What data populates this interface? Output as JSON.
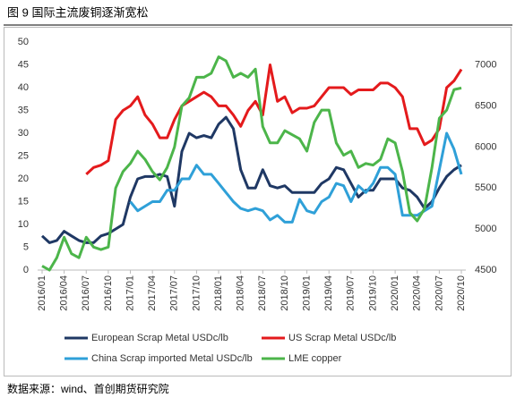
{
  "chart_data": {
    "type": "line",
    "title": "图 9 国际主流废铜逐渐宽松",
    "source": "数据来源：wind、首创期货研究院",
    "categories": [
      "2016/01",
      null,
      null,
      "2016/04",
      null,
      null,
      "2016/07",
      null,
      null,
      "2016/10",
      null,
      null,
      "2017/01",
      null,
      null,
      "2017/04",
      null,
      null,
      "2017/07",
      null,
      null,
      "2017/10",
      null,
      null,
      "2018/01",
      null,
      null,
      "2018/04",
      null,
      null,
      "2018/07",
      null,
      null,
      "2018/10",
      null,
      null,
      "2019/01",
      null,
      null,
      "2019/04",
      null,
      null,
      "2019/07",
      null,
      null,
      "2019/10",
      null,
      null,
      "2020/01",
      null,
      null,
      "2020/04",
      null,
      null,
      "2020/07",
      null,
      null,
      "2020/10"
    ],
    "ylim": [
      0,
      50
    ],
    "yticks": [
      0,
      5,
      10,
      15,
      20,
      25,
      30,
      35,
      40,
      45,
      50
    ],
    "y2lim": [
      4500,
      7280
    ],
    "y2ticks": [
      4500,
      5000,
      5500,
      6000,
      6500,
      7000
    ],
    "series": [
      {
        "name": "European Scrap Metal  USDc/lb",
        "color": "#1f3864",
        "values": [
          7.5,
          6,
          6.5,
          8.5,
          7.5,
          6.5,
          6,
          6,
          7.5,
          8,
          9,
          10,
          16,
          20,
          20.5,
          20.5,
          21,
          20.5,
          14,
          26,
          30,
          29,
          29.5,
          29,
          32,
          33.5,
          31,
          22,
          18,
          18,
          22,
          18.5,
          18,
          18.5,
          17,
          17,
          17,
          17,
          19,
          20,
          22.5,
          22,
          19,
          16,
          17.5,
          17.5,
          20,
          20,
          20,
          18,
          17.5,
          16,
          13.5,
          15,
          18,
          20.5,
          22,
          23
        ]
      },
      {
        "name": "US Scrap Metal  USDc/lb",
        "color": "#e41a1c",
        "values": [
          null,
          null,
          null,
          null,
          null,
          null,
          21,
          22.5,
          23,
          24,
          33,
          35,
          36,
          38,
          34,
          32,
          29,
          29,
          33,
          36,
          37,
          38,
          39,
          38,
          36,
          36,
          34,
          31.5,
          35,
          37,
          34,
          45,
          37,
          38,
          34.5,
          35.5,
          35.5,
          36,
          38,
          40,
          40,
          40,
          38.5,
          39.5,
          39.5,
          39.5,
          41,
          41,
          40,
          38,
          31,
          31,
          27.5,
          28.5,
          31,
          40,
          41.5,
          44
        ]
      },
      {
        "name": "China Scrap imported Metal  USDc/lb",
        "color": "#2fa0d8",
        "values": [
          null,
          null,
          null,
          null,
          null,
          null,
          null,
          null,
          null,
          null,
          null,
          null,
          15,
          13,
          14,
          15,
          15,
          17.5,
          17.5,
          20,
          20,
          23,
          21,
          21,
          19,
          17,
          15,
          13.5,
          13,
          13.5,
          13,
          11,
          12,
          10.5,
          10.5,
          15.5,
          13,
          12.5,
          15,
          16,
          19,
          18.5,
          15,
          18.5,
          17,
          19,
          22.5,
          22.5,
          21,
          12,
          12,
          12,
          13,
          14,
          22,
          30,
          26.5,
          21
        ]
      },
      {
        "name": "LME copper",
        "color": "#4cb54a",
        "axis": "y2",
        "values": [
          4550,
          4500,
          4650,
          4900,
          4700,
          4650,
          4900,
          4780,
          4750,
          4780,
          5500,
          5700,
          5800,
          5950,
          5850,
          5700,
          5600,
          5750,
          6000,
          6500,
          6600,
          6850,
          6850,
          6900,
          7100,
          7050,
          6850,
          6900,
          6850,
          6950,
          6250,
          6050,
          6050,
          6200,
          6150,
          6100,
          5950,
          6300,
          6450,
          6450,
          6050,
          5900,
          5950,
          5750,
          5800,
          5780,
          5850,
          6100,
          6050,
          5700,
          5200,
          5100,
          5250,
          5750,
          6350,
          6450,
          6700,
          6720
        ]
      }
    ]
  }
}
